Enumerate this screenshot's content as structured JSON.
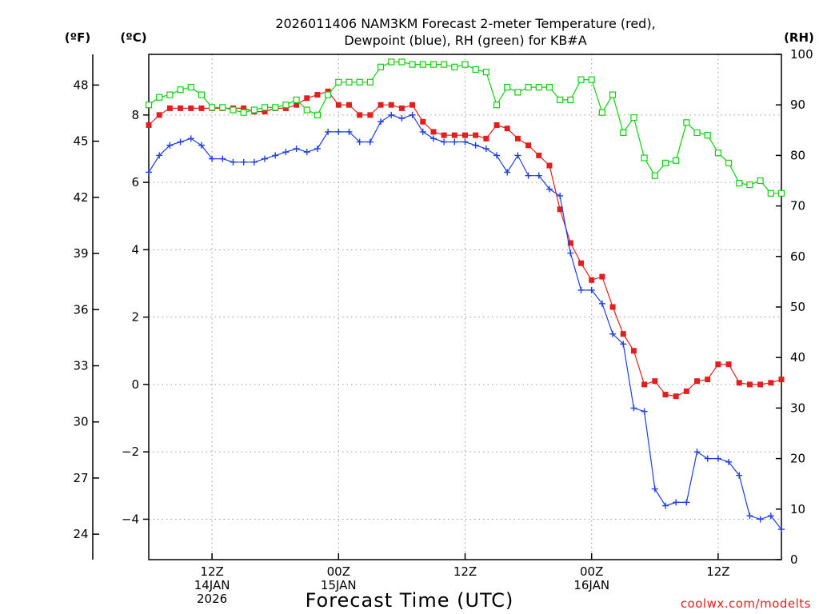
{
  "chart_data": {
    "type": "line",
    "title": [
      "2026011406 NAM3KM Forecast 2-meter Temperature (red),",
      "Dewpoint (blue), RH (green) for KB#A"
    ],
    "xlabel": "Forecast Time (UTC)",
    "credit": "coolwx.com/modelts",
    "units": {
      "fahrenheit": "(ºF)",
      "celsius": "(ºC)",
      "rh": "(RH)"
    },
    "x_range_hours": [
      0,
      60
    ],
    "x_ticks": [
      {
        "hour": 6,
        "lines": [
          "12Z",
          "14JAN",
          "2026"
        ]
      },
      {
        "hour": 18,
        "lines": [
          "00Z",
          "15JAN"
        ]
      },
      {
        "hour": 30,
        "lines": [
          "12Z"
        ]
      },
      {
        "hour": 42,
        "lines": [
          "00Z",
          "16JAN"
        ]
      },
      {
        "hour": 54,
        "lines": [
          "12Z"
        ]
      }
    ],
    "celsius_axis": {
      "range": [
        -5.2,
        9.8
      ],
      "ticks": [
        8,
        6,
        4,
        2,
        0,
        -2,
        -4
      ],
      "tick_labels": [
        "8",
        "6",
        "4",
        "2",
        "0",
        "−2",
        "−4"
      ]
    },
    "fahrenheit_axis": {
      "ticks": [
        "48",
        "45",
        "42",
        "39",
        "36",
        "33",
        "30",
        "27",
        "24"
      ]
    },
    "rh_axis": {
      "range": [
        0,
        100
      ],
      "ticks": [
        "100",
        "90",
        "80",
        "70",
        "60",
        "50",
        "40",
        "30",
        "20",
        "10",
        "0"
      ]
    },
    "series": [
      {
        "name": "Temperature",
        "axis": "celsius",
        "color": "#e0201f",
        "marker": "filled-square",
        "hours": [
          0,
          1,
          2,
          3,
          4,
          5,
          6,
          7,
          8,
          9,
          10,
          11,
          12,
          13,
          14,
          15,
          16,
          17,
          18,
          19,
          20,
          21,
          22,
          23,
          24,
          25,
          26,
          27,
          28,
          29,
          30,
          31,
          32,
          33,
          34,
          35,
          36,
          37,
          38,
          39,
          40,
          41,
          42,
          43,
          44,
          45,
          46,
          47,
          48,
          49,
          50,
          51,
          52,
          53,
          54,
          55,
          56,
          57,
          58,
          59,
          60
        ],
        "values": [
          7.7,
          8.0,
          8.2,
          8.2,
          8.2,
          8.2,
          8.2,
          8.2,
          8.2,
          8.2,
          8.1,
          8.1,
          8.2,
          8.2,
          8.3,
          8.5,
          8.6,
          8.7,
          8.3,
          8.3,
          8.0,
          8.0,
          8.3,
          8.3,
          8.2,
          8.3,
          7.8,
          7.5,
          7.4,
          7.4,
          7.4,
          7.4,
          7.3,
          7.7,
          7.6,
          7.3,
          7.1,
          6.8,
          6.5,
          5.2,
          4.2,
          3.6,
          3.1,
          3.2,
          2.3,
          1.5,
          1.0,
          0.0,
          0.1,
          -0.3,
          -0.35,
          -0.2,
          0.1,
          0.15,
          0.6,
          0.6,
          0.05,
          0.0,
          0.0,
          0.05,
          0.15
        ]
      },
      {
        "name": "Dewpoint",
        "axis": "celsius",
        "color": "#1f3fe0",
        "marker": "plus",
        "hours": [
          0,
          1,
          2,
          3,
          4,
          5,
          6,
          7,
          8,
          9,
          10,
          11,
          12,
          13,
          14,
          15,
          16,
          17,
          18,
          19,
          20,
          21,
          22,
          23,
          24,
          25,
          26,
          27,
          28,
          29,
          30,
          31,
          32,
          33,
          34,
          35,
          36,
          37,
          38,
          39,
          40,
          41,
          42,
          43,
          44,
          45,
          46,
          47,
          48,
          49,
          50,
          51,
          52,
          53,
          54,
          55,
          56,
          57,
          58,
          59,
          60
        ],
        "values": [
          6.3,
          6.8,
          7.1,
          7.2,
          7.3,
          7.1,
          6.7,
          6.7,
          6.6,
          6.6,
          6.6,
          6.7,
          6.8,
          6.9,
          7.0,
          6.9,
          7.0,
          7.5,
          7.5,
          7.5,
          7.2,
          7.2,
          7.8,
          8.0,
          7.9,
          8.0,
          7.5,
          7.3,
          7.2,
          7.2,
          7.2,
          7.1,
          7.0,
          6.8,
          6.3,
          6.8,
          6.2,
          6.2,
          5.8,
          5.6,
          3.9,
          2.8,
          2.8,
          2.4,
          1.5,
          1.2,
          -0.7,
          -0.8,
          -3.1,
          -3.6,
          -3.5,
          -3.5,
          -2.0,
          -2.2,
          -2.2,
          -2.3,
          -2.7,
          -3.9,
          -4.0,
          -3.9,
          -4.3
        ]
      },
      {
        "name": "RH",
        "axis": "rh",
        "color": "#10d010",
        "marker": "open-square",
        "hours": [
          0,
          1,
          2,
          3,
          4,
          5,
          6,
          7,
          8,
          9,
          10,
          11,
          12,
          13,
          14,
          15,
          16,
          17,
          18,
          19,
          20,
          21,
          22,
          23,
          24,
          25,
          26,
          27,
          28,
          29,
          30,
          31,
          32,
          33,
          34,
          35,
          36,
          37,
          38,
          39,
          40,
          41,
          42,
          43,
          44,
          45,
          46,
          47,
          48,
          49,
          50,
          51,
          52,
          53,
          54,
          55,
          56,
          57,
          58,
          59,
          60
        ],
        "values": [
          90,
          91.5,
          92,
          93,
          93.5,
          92,
          89.5,
          89.5,
          89,
          88.5,
          89,
          89.5,
          89.5,
          90,
          91,
          89,
          88,
          92,
          94.5,
          94.5,
          94.5,
          94.5,
          97.5,
          98.5,
          98.5,
          98,
          98,
          98,
          98,
          97.5,
          98,
          97,
          96.5,
          90,
          93.5,
          92.5,
          93.5,
          93.5,
          93.5,
          91,
          91,
          95,
          95,
          88.5,
          92,
          84.5,
          87.5,
          79.5,
          76,
          78.5,
          79,
          86.5,
          84.5,
          84,
          80.5,
          78.5,
          74.5,
          74.2,
          75,
          72.5,
          72.5
        ]
      }
    ]
  }
}
